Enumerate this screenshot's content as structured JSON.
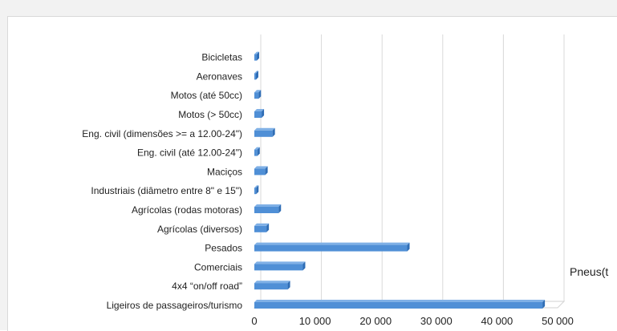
{
  "chart_data": {
    "type": "bar",
    "orientation": "horizontal",
    "categories": [
      "Ligeiros de passageiros/turismo",
      "4x4 “on/off road”",
      "Comerciais",
      "Pesados",
      "Agrícolas (diversos)",
      "Agrícolas (rodas motoras)",
      "Industriais (diâmetro entre 8\" e 15\")",
      "Maciços",
      "Eng. civil (até 12.00-24\")",
      "Eng. civil (dimensões >= a 12.00-24\")",
      "Motos (> 50cc)",
      "Motos (até 50cc)",
      "Aeronaves",
      "Bicicletas"
    ],
    "series": [
      {
        "name": "Pneus(t",
        "values": [
          47500,
          5500,
          8000,
          25200,
          2000,
          4000,
          300,
          1800,
          500,
          3000,
          1200,
          700,
          100,
          400
        ],
        "color": "#4f8fd6"
      }
    ],
    "xlim": [
      0,
      50000
    ],
    "xticks": [
      0,
      10000,
      20000,
      30000,
      40000,
      50000
    ],
    "xtick_labels": [
      "0",
      "10 000",
      "20 000",
      "30 000",
      "40 000",
      "50 000"
    ],
    "grid": "vertical",
    "legend_position": "right"
  }
}
